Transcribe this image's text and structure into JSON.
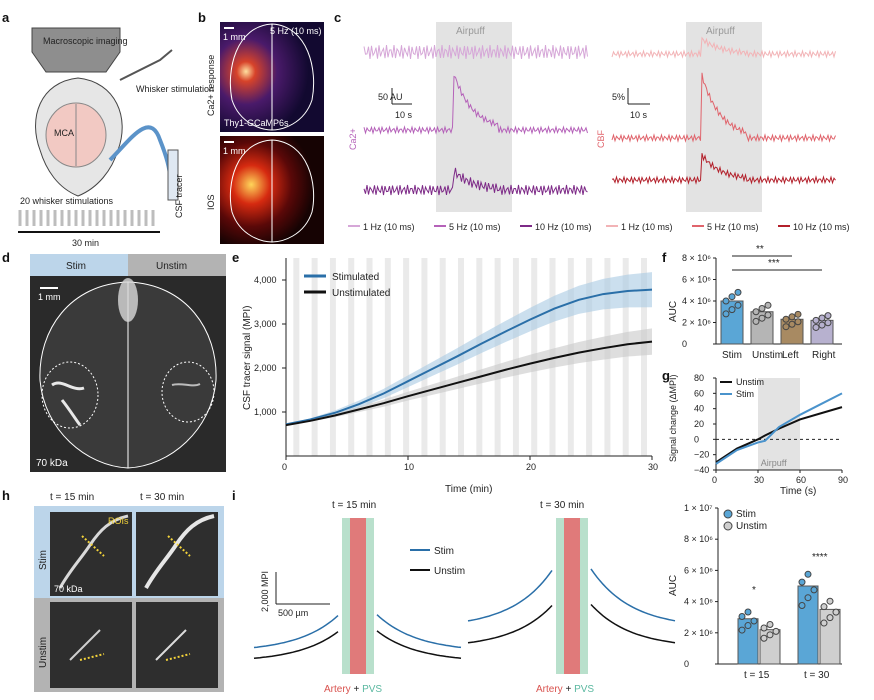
{
  "panel_labels": [
    "a",
    "b",
    "c",
    "d",
    "e",
    "f",
    "g",
    "h",
    "i"
  ],
  "panel_a": {
    "imaging_label": "Macroscopic imaging",
    "whisker_label": "Whisker stimulation",
    "mca_label": "MCA",
    "csf_label": "CSF tracer",
    "stim_count_label": "20 whisker stimulations",
    "duration_label": "30 min"
  },
  "panel_b": {
    "scale_top": "1 mm",
    "freq_label": "5 Hz (10 ms)",
    "ca_label": "Ca2+ response",
    "line_label": "Thy1-GCaMP6s",
    "scale_bottom": "1 mm",
    "ios_label": "IOS"
  },
  "panel_c": {
    "airpuff_left": "Airpuff",
    "airpuff_right": "Airpuff",
    "ca_scale": "50 AU",
    "ca_time": "10 s",
    "ca_axis": "Ca2+",
    "cbf_scale": "5%",
    "cbf_time": "10 s",
    "cbf_axis": "CBF",
    "legend": [
      "1 Hz (10 ms)",
      "5 Hz (10 ms)",
      "10 Hz (10 ms)",
      "1 Hz (10 ms)",
      "5 Hz (10 ms)",
      "10 Hz (10 ms)"
    ],
    "colors": [
      "#d6a7d8",
      "#b562b9",
      "#7d2a87",
      "#f2b3b6",
      "#e0646c",
      "#b3202b"
    ]
  },
  "panel_d": {
    "stim": "Stim",
    "unstim": "Unstim",
    "scale": "1 mm",
    "tracer": "70 kDa"
  },
  "panel_e": {
    "chart_data": {
      "type": "line",
      "xlabel": "Time (min)",
      "ylabel": "CSF tracer signal (MPI)",
      "xlim": [
        0,
        30
      ],
      "ylim": [
        0,
        4500
      ],
      "xticks": [
        "0",
        "10",
        "20",
        "30"
      ],
      "yticks": [
        "1,000",
        "2,000",
        "3,000",
        "4,000"
      ],
      "legend_position": "top-left",
      "series": [
        {
          "name": "Stimulated",
          "color": "#2a6fa8",
          "x": [
            0,
            2,
            4,
            6,
            8,
            10,
            12,
            14,
            16,
            18,
            20,
            22,
            24,
            26,
            28,
            30
          ],
          "y": [
            720,
            830,
            980,
            1180,
            1420,
            1700,
            1980,
            2260,
            2550,
            2830,
            3100,
            3350,
            3550,
            3680,
            3750,
            3780
          ]
        },
        {
          "name": "Unstimulated",
          "color": "#111111",
          "x": [
            0,
            2,
            4,
            6,
            8,
            10,
            12,
            14,
            16,
            18,
            20,
            22,
            24,
            26,
            28,
            30
          ],
          "y": [
            700,
            800,
            920,
            1060,
            1200,
            1360,
            1510,
            1660,
            1810,
            1960,
            2100,
            2230,
            2350,
            2450,
            2540,
            2600
          ]
        }
      ]
    }
  },
  "panel_f": {
    "chart_data": {
      "type": "bar",
      "categories": [
        "Stim",
        "Unstim",
        "Left",
        "Right"
      ],
      "values": [
        4000000,
        3000000,
        2300000,
        2200000
      ],
      "ylabel": "AUC",
      "ylim": [
        0,
        8000000
      ],
      "yticks": [
        "0",
        "2 × 10⁶",
        "4 × 10⁶",
        "6 × 10⁶",
        "8 × 10⁶"
      ],
      "colors": [
        "#5aa6d6",
        "#b5b5b5",
        "#a88a62",
        "#b7b1cf"
      ],
      "significance": [
        "**",
        "***"
      ]
    }
  },
  "panel_g": {
    "chart_data": {
      "type": "line",
      "xlabel": "Time (s)",
      "ylabel": "Signal change (ΔMPI)",
      "xlim": [
        0,
        90
      ],
      "ylim": [
        -40,
        80
      ],
      "xticks": [
        "0",
        "30",
        "60",
        "90"
      ],
      "yticks": [
        "−40",
        "−20",
        "0",
        "20",
        "40",
        "60",
        "80"
      ],
      "legend_position": "top-left",
      "airpuff_label": "Airpuff",
      "series": [
        {
          "name": "Unstim",
          "color": "#111111",
          "x": [
            0,
            15,
            30,
            35,
            45,
            60,
            75,
            90
          ],
          "y": [
            -30,
            -12,
            0,
            5,
            14,
            26,
            34,
            42
          ]
        },
        {
          "name": "Stim",
          "color": "#4a93cc",
          "x": [
            0,
            15,
            30,
            35,
            45,
            60,
            75,
            90
          ],
          "y": [
            -32,
            -14,
            -4,
            -2,
            16,
            32,
            46,
            60
          ]
        }
      ]
    }
  },
  "panel_h": {
    "t15": "t = 15 min",
    "t30": "t = 30 min",
    "rois": "ROIs",
    "stim": "Stim",
    "unstim": "Unstim",
    "tracer": "70 kDa"
  },
  "panel_i": {
    "t15": "t = 15 min",
    "t30": "t = 30 min",
    "scale_mpi": "2,000 MPI",
    "scale_um": "500 µm",
    "legend_stim": "Stim",
    "legend_unstim": "Unstim",
    "artery": "Artery",
    "plus": " + ",
    "pvs": "PVS"
  },
  "panel_i_bar": {
    "chart_data": {
      "type": "bar",
      "categories": [
        "t = 15",
        "t = 30"
      ],
      "ylabel": "AUC",
      "ylim": [
        0,
        10000000
      ],
      "yticks": [
        "0",
        "2 × 10⁶",
        "4 × 10⁶",
        "6 × 10⁶",
        "8 × 10⁶",
        "1 × 10⁷"
      ],
      "legend_position": "top-left",
      "series": [
        {
          "name": "Stim",
          "color": "#5aa6d6",
          "values": [
            2900000,
            5000000
          ]
        },
        {
          "name": "Unstim",
          "color": "#cfcfcf",
          "values": [
            2200000,
            3500000
          ]
        }
      ],
      "significance": [
        "*",
        "****"
      ]
    }
  }
}
